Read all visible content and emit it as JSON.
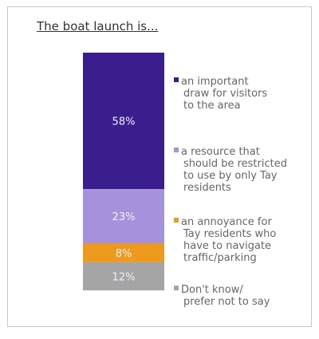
{
  "chart_data": {
    "type": "bar",
    "stacked": true,
    "title": "The boat launch is...",
    "categories": [
      ""
    ],
    "series": [
      {
        "name": "an important draw for visitors to the area",
        "values": [
          58
        ],
        "label": "58%",
        "color": "#3b1e8e"
      },
      {
        "name": "a resource that should be restricted to use by only Tay residents",
        "values": [
          23
        ],
        "label": "23%",
        "color": "#a692dc"
      },
      {
        "name": "an annoyance for Tay residents who have to navigate traffic/parking",
        "values": [
          8
        ],
        "label": "8%",
        "color": "#ee9a1e"
      },
      {
        "name": "Don't know/ prefer not to say",
        "values": [
          12
        ],
        "label": "12%",
        "color": "#a5a5a5"
      }
    ],
    "legend_lines": [
      [
        "an important",
        "draw for visitors",
        "to the area"
      ],
      [
        "a resource that",
        "should be restricted",
        "to use by only Tay",
        "residents"
      ],
      [
        "an annoyance for",
        "Tay residents who",
        "have to navigate",
        "traffic/parking"
      ],
      [
        "Don't know/",
        "prefer not to say"
      ]
    ],
    "legend_position": "right",
    "grid": false,
    "axes": false
  }
}
